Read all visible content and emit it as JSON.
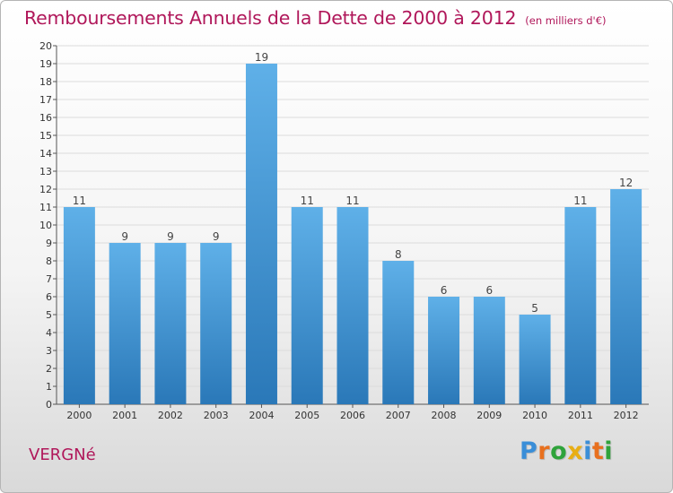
{
  "chart_data": {
    "type": "bar",
    "title": "Remboursements Annuels de la Dette de 2000 à 2012",
    "subtitle": "(en milliers d'€)",
    "categories": [
      "2000",
      "2001",
      "2002",
      "2003",
      "2004",
      "2005",
      "2006",
      "2007",
      "2008",
      "2009",
      "2010",
      "2011",
      "2012"
    ],
    "values": [
      11,
      9,
      9,
      9,
      19,
      11,
      11,
      8,
      6,
      6,
      5,
      11,
      12
    ],
    "xlabel": "",
    "ylabel": "",
    "ylim": [
      0,
      20
    ],
    "yticks": [
      0,
      1,
      2,
      3,
      4,
      5,
      6,
      7,
      8,
      9,
      10,
      11,
      12,
      13,
      14,
      15,
      16,
      17,
      18,
      19,
      20
    ],
    "grid": true,
    "legend": "none",
    "bar_color": "#4a9fdb",
    "bar_color_dark": "#2a78b8",
    "bar_color_light": "#5fb0e8"
  },
  "footer": {
    "commune": "VERGNé",
    "logo_letters": [
      {
        "ch": "P",
        "color": "#3a8ed8"
      },
      {
        "ch": "r",
        "color": "#e8701e"
      },
      {
        "ch": "o",
        "color": "#2fa33b"
      },
      {
        "ch": "x",
        "color": "#e8ae14"
      },
      {
        "ch": "i",
        "color": "#3a8ed8"
      },
      {
        "ch": "t",
        "color": "#e8701e"
      },
      {
        "ch": "i",
        "color": "#2fa33b"
      }
    ]
  },
  "colors": {
    "title": "#b0175a"
  }
}
